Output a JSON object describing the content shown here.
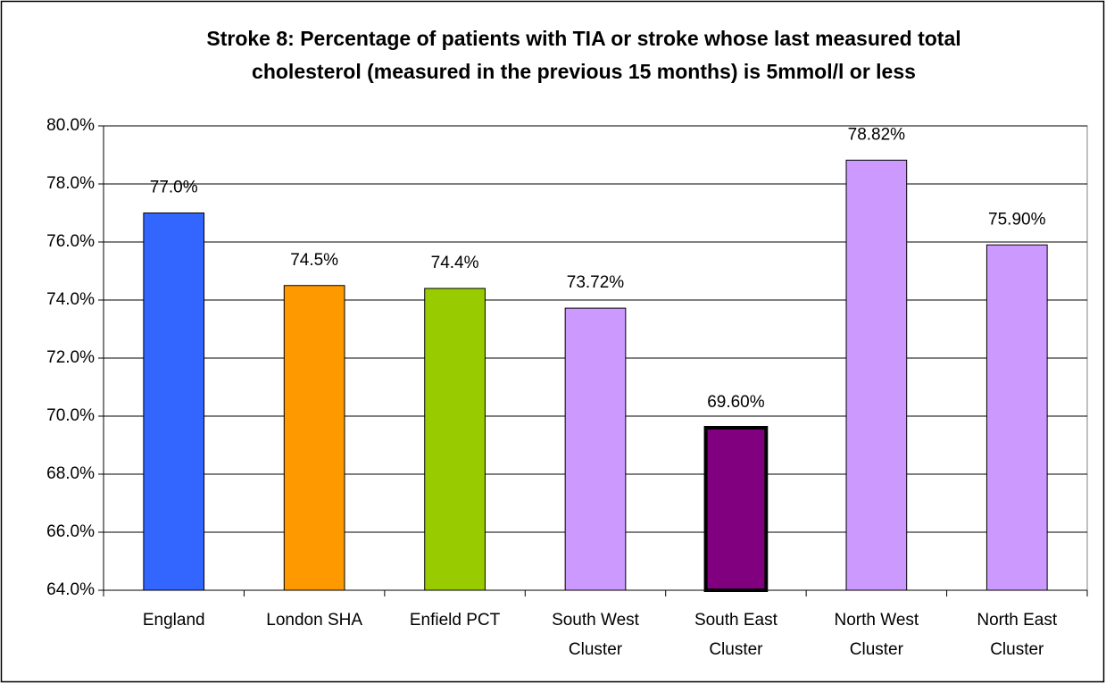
{
  "chart_data": {
    "type": "bar",
    "title": "Stroke 8: Percentage of patients with TIA or stroke whose last measured total cholesterol (measured in the previous 15 months) is 5mmol/l or less",
    "categories": [
      "England",
      "London SHA",
      "Enfield PCT",
      "South West Cluster",
      "South East Cluster",
      "North West Cluster",
      "North East Cluster"
    ],
    "values": [
      77,
      74.5,
      74.4,
      73.72,
      69.6,
      78.82,
      75.9
    ],
    "value_labels": [
      "77.0%",
      "74.5%",
      "74.4%",
      "73.72%",
      "69.60%",
      "78.82%",
      "75.90%"
    ],
    "colors": [
      "#3366ff",
      "#ff9900",
      "#99cc00",
      "#cc99ff",
      "#800080",
      "#cc99ff",
      "#cc99ff"
    ],
    "bar_stroke_widths": [
      1,
      1,
      1,
      1,
      4,
      1,
      1
    ],
    "ylim": [
      64,
      80
    ],
    "yticks": [
      {
        "value": 64,
        "label": "64.0%"
      },
      {
        "value": 66,
        "label": "66.0%"
      },
      {
        "value": 68,
        "label": "68.0%"
      },
      {
        "value": 70,
        "label": "70.0%"
      },
      {
        "value": 72,
        "label": "72.0%"
      },
      {
        "value": 74,
        "label": "74.0%"
      },
      {
        "value": 76,
        "label": "76.0%"
      },
      {
        "value": 78,
        "label": "78.0%"
      },
      {
        "value": 80,
        "label": "80.0%"
      }
    ],
    "grid": true
  }
}
